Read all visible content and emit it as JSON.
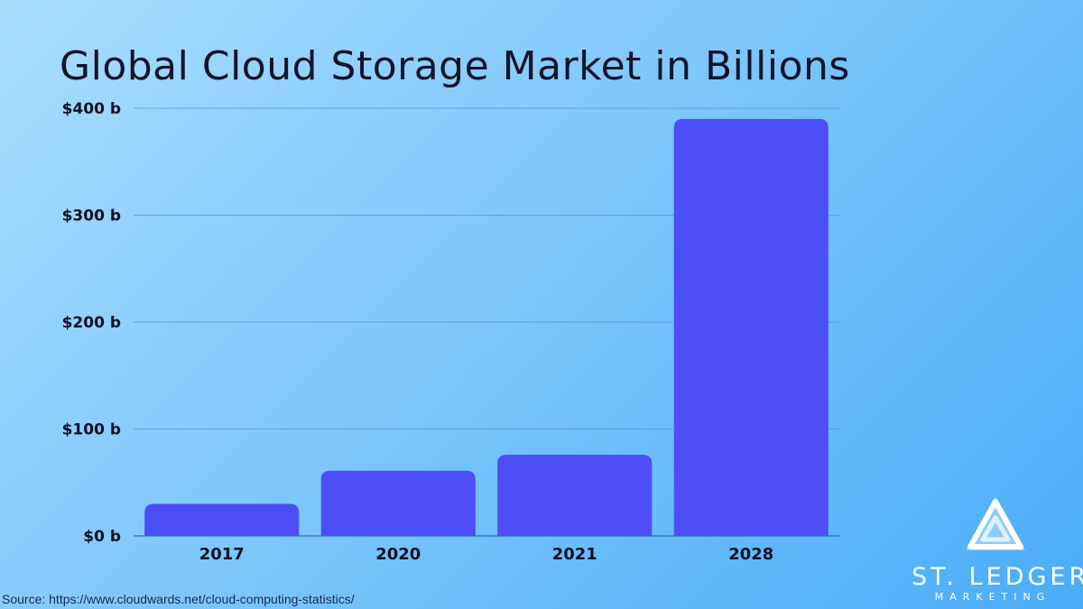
{
  "chart_data": {
    "type": "bar",
    "title": "Global Cloud Storage Market in Billions",
    "categories": [
      "2017",
      "2020",
      "2021",
      "2028"
    ],
    "values": [
      30,
      61,
      76,
      390
    ],
    "ylim": [
      0,
      400
    ],
    "yticks": [
      0,
      100,
      200,
      300,
      400
    ],
    "ytick_labels": [
      "$0 b",
      "$100 b",
      "$200 b",
      "$300 b",
      "$400 b"
    ],
    "grid": true,
    "xlabel": "",
    "ylabel": "",
    "bar_color": "#4d4df5"
  },
  "source": "Source: https://www.cloudwards.net/cloud-computing-statistics/",
  "logo": {
    "name": "ST. LEDGER",
    "tagline": "MARKETING",
    "icon": "triangle-logo-icon"
  }
}
